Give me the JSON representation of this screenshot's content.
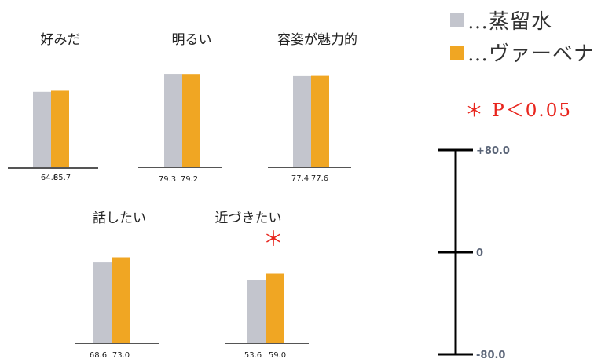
{
  "chart_data": {
    "type": "bar",
    "legend": {
      "placement": "top-right",
      "entries": [
        {
          "label": "…蒸留水",
          "color": "#c3c5cd"
        },
        {
          "label": "…ヴァーベナ",
          "color": "#f0a623"
        }
      ]
    },
    "significance_note": "＊ P＜0.05",
    "panels": [
      {
        "title": "好みだ",
        "values": [
          64.8,
          65.7
        ],
        "value_labels": [
          "64.8",
          "65.7"
        ],
        "significant": false
      },
      {
        "title": "明るい",
        "values": [
          79.3,
          79.2
        ],
        "value_labels": [
          "79.3",
          "79.2"
        ],
        "significant": false
      },
      {
        "title": "容姿が魅力的",
        "values": [
          77.4,
          77.6
        ],
        "value_labels": [
          "77.4",
          "77.6"
        ],
        "significant": false
      },
      {
        "title": "話したい",
        "values": [
          68.6,
          73.0
        ],
        "value_labels": [
          "68.6",
          "73.0"
        ],
        "significant": false
      },
      {
        "title": "近づきたい",
        "values": [
          53.6,
          59.0
        ],
        "value_labels": [
          "53.6",
          "59.0"
        ],
        "significant": true
      }
    ],
    "series_colors": [
      "#c3c5cd",
      "#f0a623"
    ],
    "significance_color": "#e8251d",
    "scale": {
      "ylim": [
        -80.0,
        80.0
      ],
      "tick_labels": [
        "+80.0",
        "0",
        "-80.0"
      ],
      "tick_values": [
        80,
        0,
        -80
      ]
    }
  }
}
